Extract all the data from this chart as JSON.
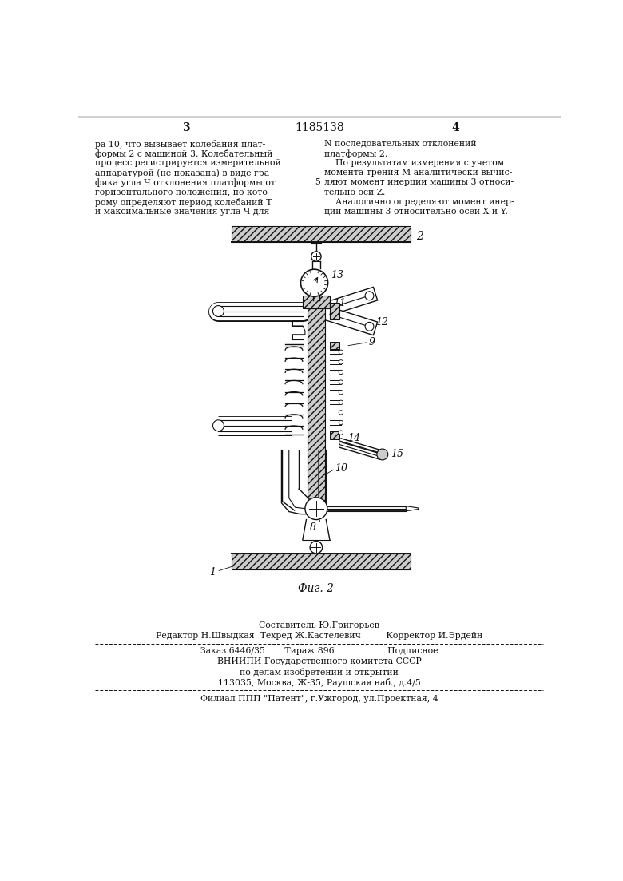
{
  "background_color": "#ffffff",
  "page_width": 7.8,
  "page_height": 11.03,
  "top_text_left": [
    "ра 10, что вызывает колебания плат-",
    "формы 2 с машиной 3. Колебательный",
    "процесс регистрируется измерительной",
    "аппаратурой (не показана) в виде гра-",
    "фика угла Ч отклонения платформы от",
    "горизонтального положения, по кото-",
    "рому определяют период колебаний Т",
    "и максимальные значения угла Ч для"
  ],
  "top_text_right": [
    "N последовательных отклонений",
    "платформы 2.",
    "    По результатам измерения с учетом",
    "момента трения М аналитически вычис-",
    "ляют момент инерции машины 3 относи-",
    "тельно оси Z.",
    "    Аналогично определяют момент инер-",
    "ции машины 3 относительно осей X и Y."
  ],
  "page_num_left": "3",
  "page_num_center": "1185138",
  "page_num_right": "4",
  "fig_caption": "Фиг. 2",
  "footer_line1": "Составитель Ю.Григорьев",
  "footer_line2": "Редактор Н.Швыдкая  Техред Ж.Кастелевич         Корректор И.Эрдейн",
  "footer_line3": "Заказ 6446/35       Тираж 896                   Подписное",
  "footer_line4": "ВНИИПИ Государственного комитета СССР",
  "footer_line5": "по делам изобретений и открытий",
  "footer_line6": "113035, Москва, Ж-35, Раушская наб., д.4/5",
  "footer_line7": "Филиал ППП \"Патент\", г.Ужгород, ул.Проектная, 4",
  "drawing_color": "#111111"
}
